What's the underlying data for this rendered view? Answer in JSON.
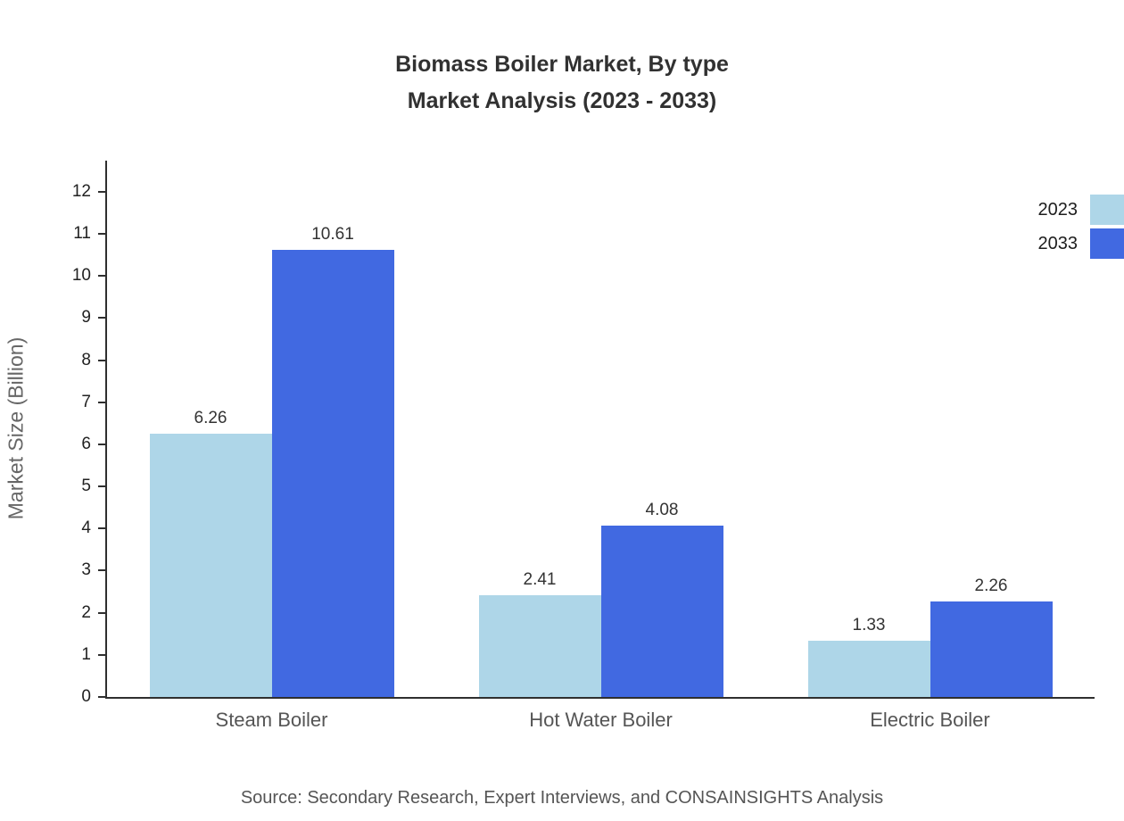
{
  "title": {
    "line1": "Biomass Boiler Market, By type",
    "line2": "Market Analysis (2023 - 2033)"
  },
  "source": "Source: Secondary Research, Expert Interviews, and CONSAINSIGHTS Analysis",
  "chart_data": {
    "type": "bar",
    "title": "Biomass Boiler Market, By type Market Analysis (2023 - 2033)",
    "categories": [
      "Steam Boiler",
      "Hot Water Boiler",
      "Electric Boiler"
    ],
    "series": [
      {
        "name": "2023",
        "color": "#aed6e8",
        "values": [
          6.26,
          2.41,
          1.33
        ]
      },
      {
        "name": "2033",
        "color": "#4169e1",
        "values": [
          10.61,
          4.08,
          2.26
        ]
      }
    ],
    "value_labels": [
      [
        "6.26",
        "2.41",
        "1.33"
      ],
      [
        "10.61",
        "4.08",
        "2.26"
      ]
    ],
    "xlabel": "",
    "ylabel": "Market Size (Billion)",
    "ylim": [
      0,
      12.74
    ],
    "yticks": [
      0,
      1,
      2,
      3,
      4,
      5,
      6,
      7,
      8,
      9,
      10,
      11,
      12
    ],
    "grid": false,
    "legend_position": "top-right"
  }
}
